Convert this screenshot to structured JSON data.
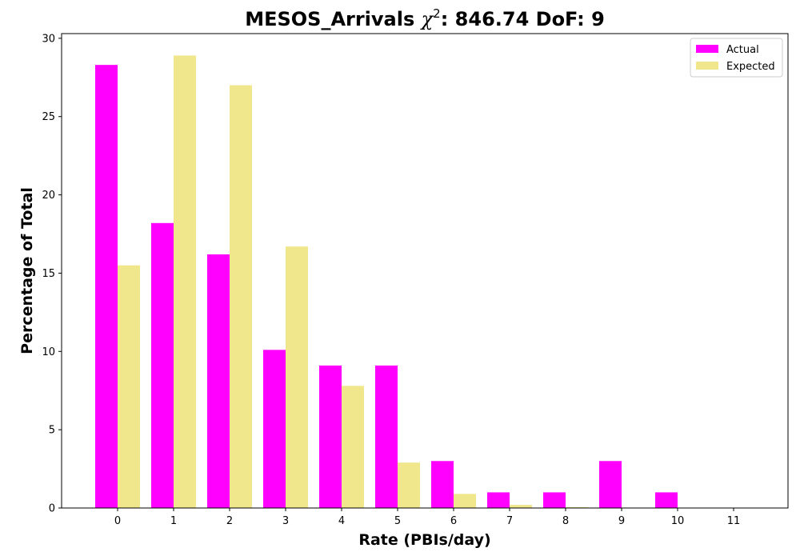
{
  "chart_data": {
    "type": "bar",
    "title_main": "MESOS_Arrivals ",
    "title_chi": "χ",
    "title_sup": "2",
    "title_rest": ": 846.74 DoF: 9",
    "xlabel": "Rate (PBIs/day)",
    "ylabel": "Percentage of Total",
    "categories": [
      "0",
      "1",
      "2",
      "3",
      "4",
      "5",
      "6",
      "7",
      "8",
      "9",
      "10",
      "11"
    ],
    "ylim": [
      0,
      30.3
    ],
    "yticks": [
      0,
      5,
      10,
      15,
      20,
      25,
      30
    ],
    "grid": false,
    "legend_position": "top-right",
    "series": [
      {
        "name": "Actual",
        "color": "#ff00ff",
        "values": [
          28.3,
          18.2,
          16.2,
          10.1,
          9.1,
          9.1,
          3.0,
          1.0,
          1.0,
          3.0,
          1.0,
          0
        ]
      },
      {
        "name": "Expected",
        "color": "#f0e68c",
        "values": [
          15.5,
          28.9,
          27.0,
          16.7,
          7.8,
          2.9,
          0.9,
          0.2,
          0.05,
          0.01,
          0.0,
          0.0
        ]
      }
    ]
  }
}
